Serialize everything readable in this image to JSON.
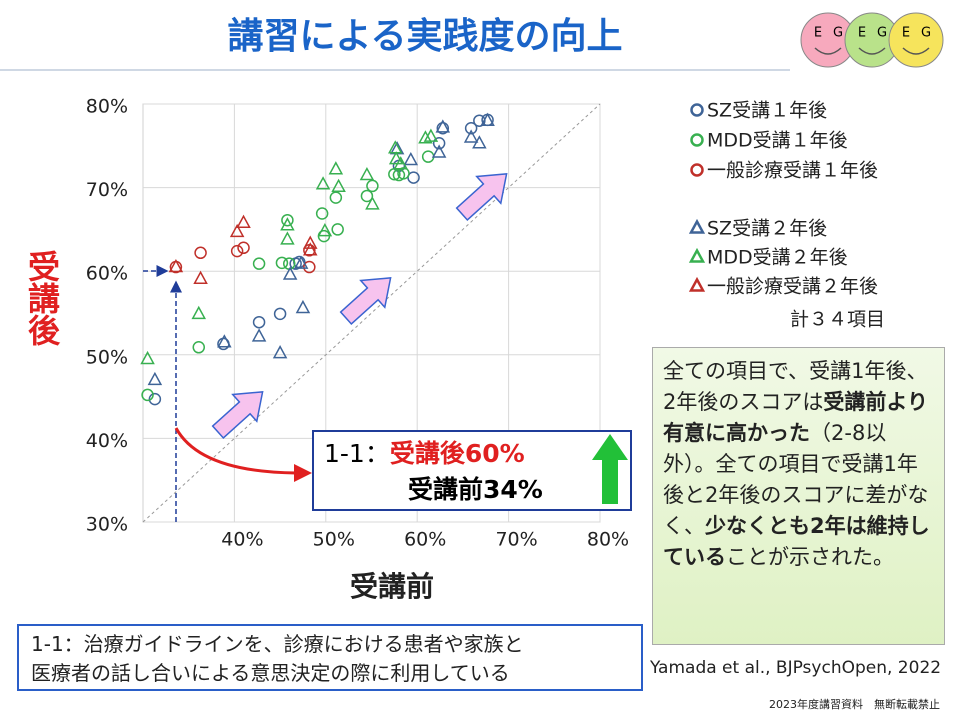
{
  "title": "講習による実践度の向上",
  "logo": [
    "E",
    "G",
    "E",
    "G",
    "E",
    "G"
  ],
  "chart_data": {
    "type": "scatter",
    "xlabel": "受講前",
    "ylabel": "受講後",
    "xlim": [
      30,
      80
    ],
    "ylim": [
      30,
      80
    ],
    "xticks": [
      {
        "value": 40,
        "label": "40%"
      },
      {
        "value": 50,
        "label": "50%"
      },
      {
        "value": 60,
        "label": "60%"
      },
      {
        "value": 70,
        "label": "70%"
      },
      {
        "value": 80,
        "label": "80%"
      }
    ],
    "yticks": [
      {
        "value": 30,
        "label": "30%"
      },
      {
        "value": 40,
        "label": "40%"
      },
      {
        "value": 50,
        "label": "50%"
      },
      {
        "value": 60,
        "label": "60%"
      },
      {
        "value": 70,
        "label": "70%"
      },
      {
        "value": 80,
        "label": "80%"
      }
    ],
    "grid": true,
    "series": [
      {
        "name": "SZ受講１年後",
        "color": "#3f6497",
        "marker": "circle",
        "x": [
          31.3,
          38.8,
          42.7,
          45.0,
          47.1,
          46.7,
          59.6,
          58.0,
          62.4,
          62.8,
          65.9,
          66.8,
          67.7
        ],
        "y": [
          44.7,
          51.3,
          53.9,
          54.9,
          61.1,
          60.9,
          71.2,
          72.6,
          75.3,
          77.1,
          77.1,
          78.0,
          78.1
        ]
      },
      {
        "name": "MDD受講１年後",
        "color": "#38b050",
        "marker": "circle",
        "x": [
          30.5,
          36.1,
          42.7,
          45.2,
          46.0,
          45.8,
          49.6,
          49.8,
          51.3,
          51.1,
          54.5,
          55.1,
          57.5,
          58.0,
          58.5,
          61.2
        ],
        "y": [
          45.2,
          50.9,
          60.9,
          61.0,
          60.9,
          66.1,
          66.9,
          64.2,
          65.0,
          68.8,
          69.0,
          70.2,
          71.6,
          71.5,
          71.7,
          73.7
        ]
      },
      {
        "name": "一般診療受講１年後",
        "color": "#c0302a",
        "marker": "circle",
        "x": [
          33.6,
          36.3,
          40.3,
          41.0,
          48.2,
          48.2
        ],
        "y": [
          60.5,
          62.2,
          62.4,
          62.8,
          60.5,
          62.5
        ]
      },
      {
        "name": "SZ受講２年後",
        "color": "#3f6497",
        "marker": "triangle",
        "x": [
          31.3,
          38.9,
          42.7,
          45.0,
          46.1,
          47.3,
          47.5,
          59.3,
          62.4,
          62.8,
          65.9,
          66.8,
          67.7,
          57.8
        ],
        "y": [
          47.0,
          51.5,
          52.2,
          50.2,
          59.6,
          60.9,
          55.6,
          73.3,
          74.2,
          77.2,
          76.0,
          75.3,
          78.0,
          74.6
        ]
      },
      {
        "name": "MDD受講２年後",
        "color": "#38b050",
        "marker": "triangle",
        "x": [
          30.5,
          36.1,
          45.8,
          45.8,
          49.7,
          51.1,
          51.4,
          49.9,
          54.5,
          55.1,
          57.6,
          57.7,
          58.2,
          60.9,
          61.5
        ],
        "y": [
          49.5,
          54.9,
          63.8,
          65.5,
          70.4,
          72.2,
          70.1,
          64.8,
          71.5,
          68.0,
          74.7,
          73.4,
          72.8,
          75.9,
          76.1
        ]
      },
      {
        "name": "一般診療受講２年後",
        "color": "#c0302a",
        "marker": "triangle",
        "x": [
          33.6,
          36.3,
          40.3,
          41.0,
          48.3,
          48.3
        ],
        "y": [
          60.5,
          59.1,
          64.7,
          65.8,
          63.3,
          62.5
        ]
      }
    ],
    "annotation": "計３４項目"
  },
  "callout": {
    "item": "1-1：",
    "after": "受講後60%",
    "before": "受講前34%"
  },
  "summary": [
    {
      "text": "全ての項目で、受講1年後、2年後のスコアは",
      "bold": false
    },
    {
      "text": "受講前より有意に高かった",
      "bold": true
    },
    {
      "text": "（2-8以外）。全ての項目で受講1年後と2年後のスコアに差がなく、",
      "bold": false
    },
    {
      "text": "少なくとも2年は維持している",
      "bold": true
    },
    {
      "text": "ことが示された。",
      "bold": false
    }
  ],
  "footnote": [
    "1-1：治療ガイドラインを、診療における患者や家族と",
    "医療者の話し合いによる意思決定の際に利用している"
  ],
  "citation": "Yamada et al., BJPsychOpen, 2022",
  "copyright": "2023年度講習資料　無断転載禁止"
}
